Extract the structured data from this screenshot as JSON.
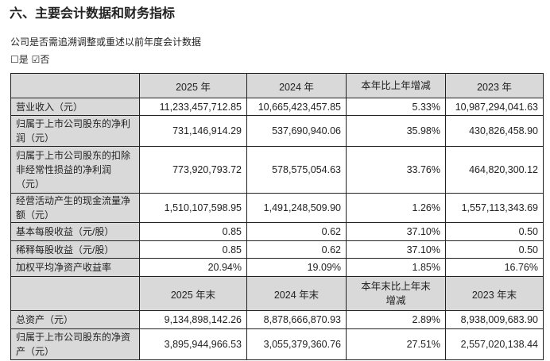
{
  "title": "六、主要会计数据和财务指标",
  "question": "公司是否需追溯调整或重述以前年度会计数据",
  "options": "☐是 ☑否",
  "header1": [
    "",
    "2025 年",
    "2024 年",
    "本年比上年增减",
    "2023 年"
  ],
  "rows1": [
    [
      "营业收入（元）",
      "11,233,457,712.85",
      "10,665,423,457.85",
      "5.33%",
      "10,987,294,041.63"
    ],
    [
      "归属于上市公司股东的净利润（元）",
      "731,146,914.29",
      "537,690,940.06",
      "35.98%",
      "430,826,458.90"
    ],
    [
      "归属于上市公司股东的扣除非经常性损益的净利润（元）",
      "773,920,793.72",
      "578,575,054.63",
      "33.76%",
      "464,820,300.12"
    ],
    [
      "经营活动产生的现金流量净额（元）",
      "1,510,107,598.95",
      "1,491,248,509.90",
      "1.26%",
      "1,557,113,343.69"
    ],
    [
      "基本每股收益（元/股）",
      "0.85",
      "0.62",
      "37.10%",
      "0.50"
    ],
    [
      "稀释每股收益（元/股）",
      "0.85",
      "0.62",
      "37.10%",
      "0.50"
    ],
    [
      "加权平均净资产收益率",
      "20.94%",
      "19.09%",
      "1.85%",
      "16.76%"
    ]
  ],
  "header2": [
    "",
    "2025 年末",
    "2024 年末",
    "本年末比上年末增减",
    "2023 年末"
  ],
  "rows2": [
    [
      "总资产（元）",
      "9,134,898,142.26",
      "8,878,666,870.93",
      "2.89%",
      "8,938,009,683.90"
    ],
    [
      "归属于上市公司股东的净资产（元）",
      "3,895,944,966.53",
      "3,055,379,360.76",
      "27.51%",
      "2,557,020,138.44"
    ]
  ]
}
